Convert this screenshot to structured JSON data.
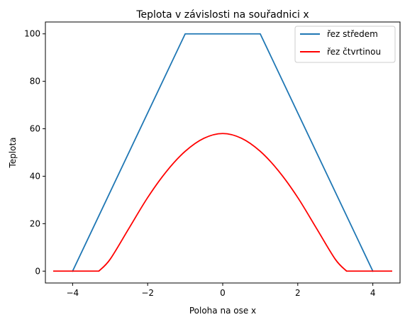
{
  "chart_data": {
    "type": "line",
    "title": "Teplota v závislosti na souřadnici x",
    "xlabel": "Poloha na ose x",
    "ylabel": "Teplota",
    "xlim": [
      -4.725,
      4.725
    ],
    "ylim": [
      -5,
      105
    ],
    "xticks": [
      -4,
      -2,
      0,
      2,
      4
    ],
    "xtick_labels": [
      "−4",
      "−2",
      "0",
      "2",
      "4"
    ],
    "yticks": [
      0,
      20,
      40,
      60,
      80,
      100
    ],
    "ytick_labels": [
      "0",
      "20",
      "40",
      "60",
      "80",
      "100"
    ],
    "grid": false,
    "legend_position": "top-right",
    "series": [
      {
        "name": "řez středem",
        "color": "#1f77b4",
        "x": [
          -4,
          -1,
          1,
          4
        ],
        "y": [
          0,
          100,
          100,
          0
        ]
      },
      {
        "name": "řez čtvrtinou",
        "color": "#ff0000",
        "x": [
          -4.5,
          -3.3,
          -3.0,
          -2.5,
          -2.0,
          -1.5,
          -1.0,
          -0.5,
          0,
          0.5,
          1.0,
          1.5,
          2.0,
          2.5,
          3.0,
          3.3,
          4.5
        ],
        "y": [
          0,
          0,
          5,
          18,
          31,
          42,
          50.5,
          56,
          58,
          56,
          50.5,
          42,
          31,
          18,
          5,
          0,
          0
        ]
      }
    ]
  }
}
